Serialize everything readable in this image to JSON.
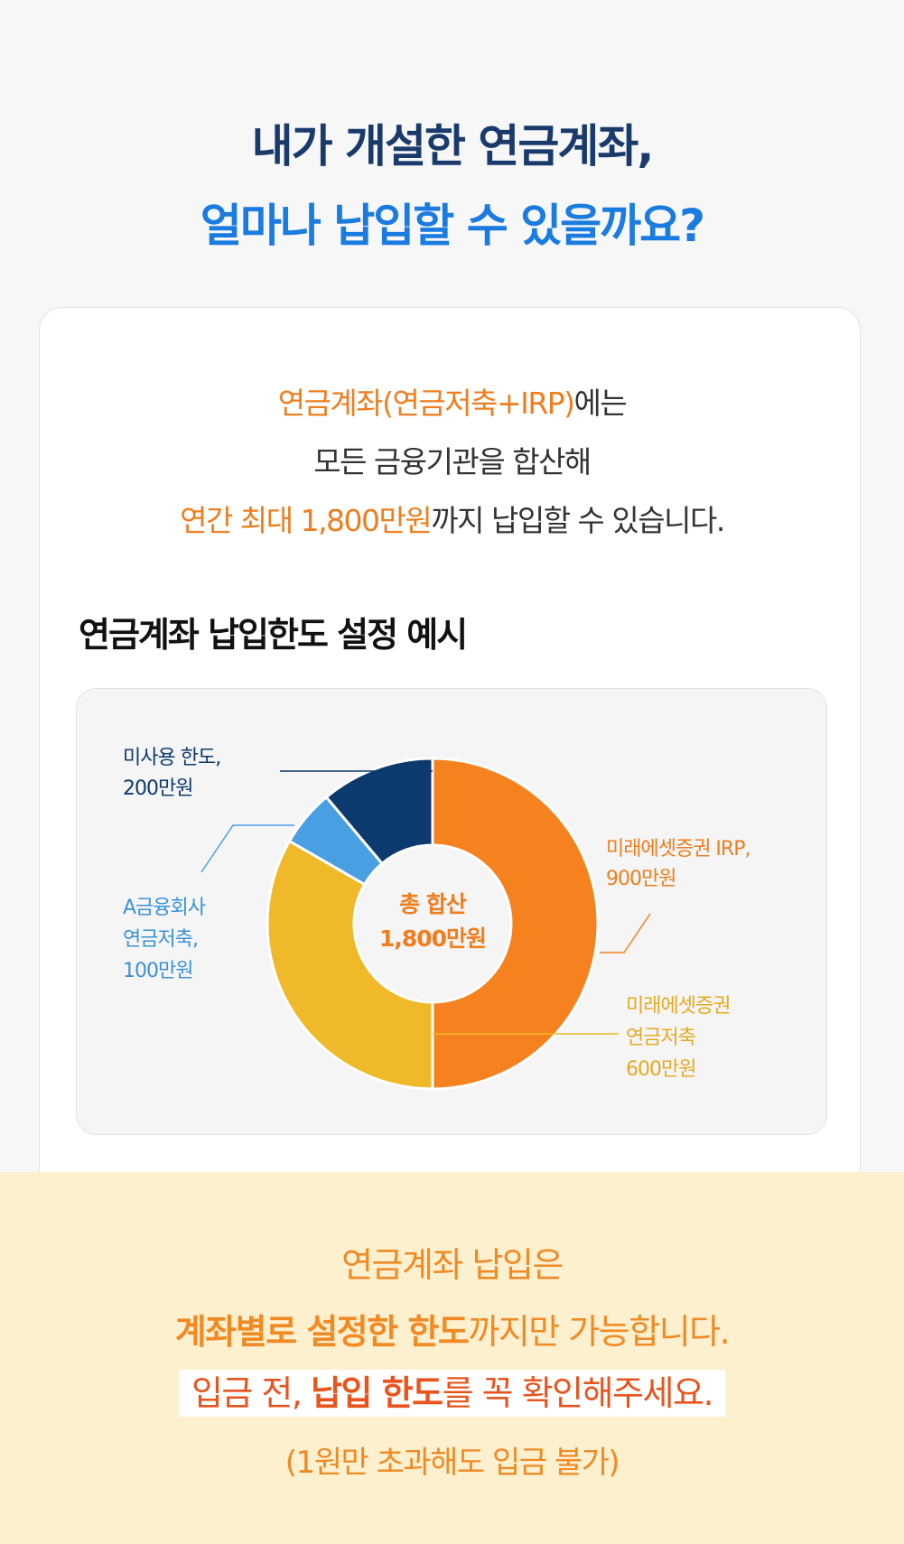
{
  "header": {
    "title_lines": [
      "내가 개설한 연금계좌,",
      "얼마나 납입할 수 있을까요?"
    ]
  },
  "intro": {
    "lines": [
      [
        "연금계좌(연금저축+IRP)",
        "에는"
      ],
      [
        "모든 금융기관을 합산해"
      ],
      [
        "연간 최대 1,800만원",
        "까지 납입할 수 있습니다."
      ]
    ]
  },
  "chart_data": {
    "type": "pie",
    "title": "연금계좌 납입한도 설정 예시",
    "donut": true,
    "center_label": [
      "총 합산",
      "1,800만원"
    ],
    "categories": [
      [
        "미래에셋증권 IRP,"
      ],
      [
        "미래에셋증권",
        "연금저축"
      ],
      [
        "A금융회사",
        "연금저축,"
      ],
      [
        "미사용 한도,"
      ]
    ],
    "values": [
      900,
      600,
      100,
      200
    ],
    "value_labels": [
      "900만원",
      "600만원",
      "100만원",
      "200만원"
    ],
    "colors": [
      "#f5821f",
      "#f0b92a",
      "#4a9fe3",
      "#0d3a6e"
    ],
    "label_colors": [
      "#f07d1e",
      "#e8a920",
      "#3b92dc",
      "#0d3a6e"
    ]
  },
  "footer": {
    "lines": [
      [
        "연금계좌 납입은"
      ],
      [
        "계좌별로 설정한 한도",
        "까지만 가능합니다."
      ],
      [
        "입금 전, ",
        "납입 한도",
        "를 꼭 확인해주세요."
      ],
      [
        "(1원만 초과해도 입금 불가)"
      ]
    ]
  }
}
